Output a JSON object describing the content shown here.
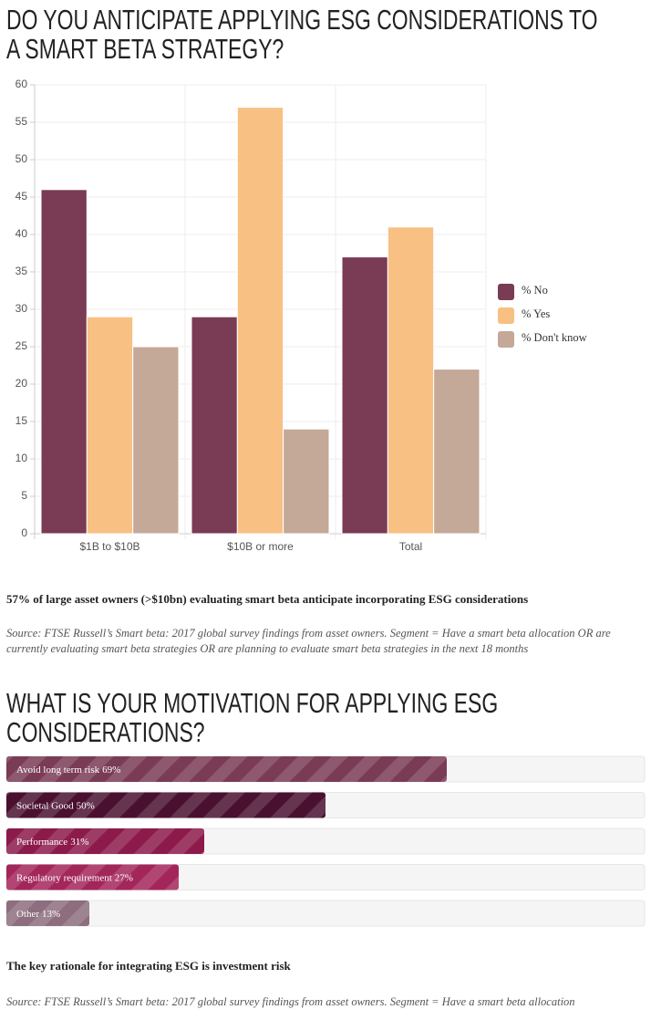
{
  "chart_data": [
    {
      "type": "bar",
      "orientation": "vertical",
      "title": "DO YOU ANTICIPATE APPLYING ESG CONSIDERATIONS TO A SMART BETA STRATEGY?",
      "categories": [
        "$1B to $10B",
        "$10B or more",
        "Total"
      ],
      "series": [
        {
          "name": "% No",
          "color": "#7a3b55",
          "values": [
            46,
            29,
            37
          ]
        },
        {
          "name": "% Yes",
          "color": "#f8c083",
          "values": [
            29,
            57,
            41
          ]
        },
        {
          "name": "% Don't know",
          "color": "#c4a898",
          "values": [
            25,
            14,
            22
          ]
        }
      ],
      "ylim": [
        0,
        60
      ],
      "yticks": [
        0,
        5,
        10,
        15,
        20,
        25,
        30,
        35,
        40,
        45,
        50,
        55,
        60
      ],
      "grid": true,
      "legend": "right",
      "caption": "57% of large asset owners (>$10bn) evaluating smart beta anticipate incorporating ESG considerations",
      "source": "Source: FTSE Russell’s Smart beta: 2017 global survey findings from asset owners. Segment = Have a smart beta allocation OR are currently evaluating smart beta strategies OR are planning to evaluate smart beta strategies in the next 18 months"
    },
    {
      "type": "bar",
      "orientation": "horizontal",
      "title": "WHAT IS YOUR MOTIVATION FOR APPLYING ESG CONSIDERATIONS?",
      "categories": [
        "Avoid long term risk",
        "Societal Good",
        "Performance",
        "Regulatory requirement",
        "Other"
      ],
      "values": [
        69,
        50,
        31,
        27,
        13
      ],
      "value_labels": [
        "69%",
        "50%",
        "31%",
        "27%",
        "13%"
      ],
      "colors": [
        "#7a3b55",
        "#4a1030",
        "#8c1a4a",
        "#a3265a",
        "#8d6d7e"
      ],
      "xlim": [
        0,
        100
      ],
      "caption": "The key rationale for integrating ESG is investment risk",
      "source": "Source: FTSE Russell’s Smart beta: 2017 global survey findings from asset owners. Segment = Have a smart beta allocation"
    }
  ]
}
